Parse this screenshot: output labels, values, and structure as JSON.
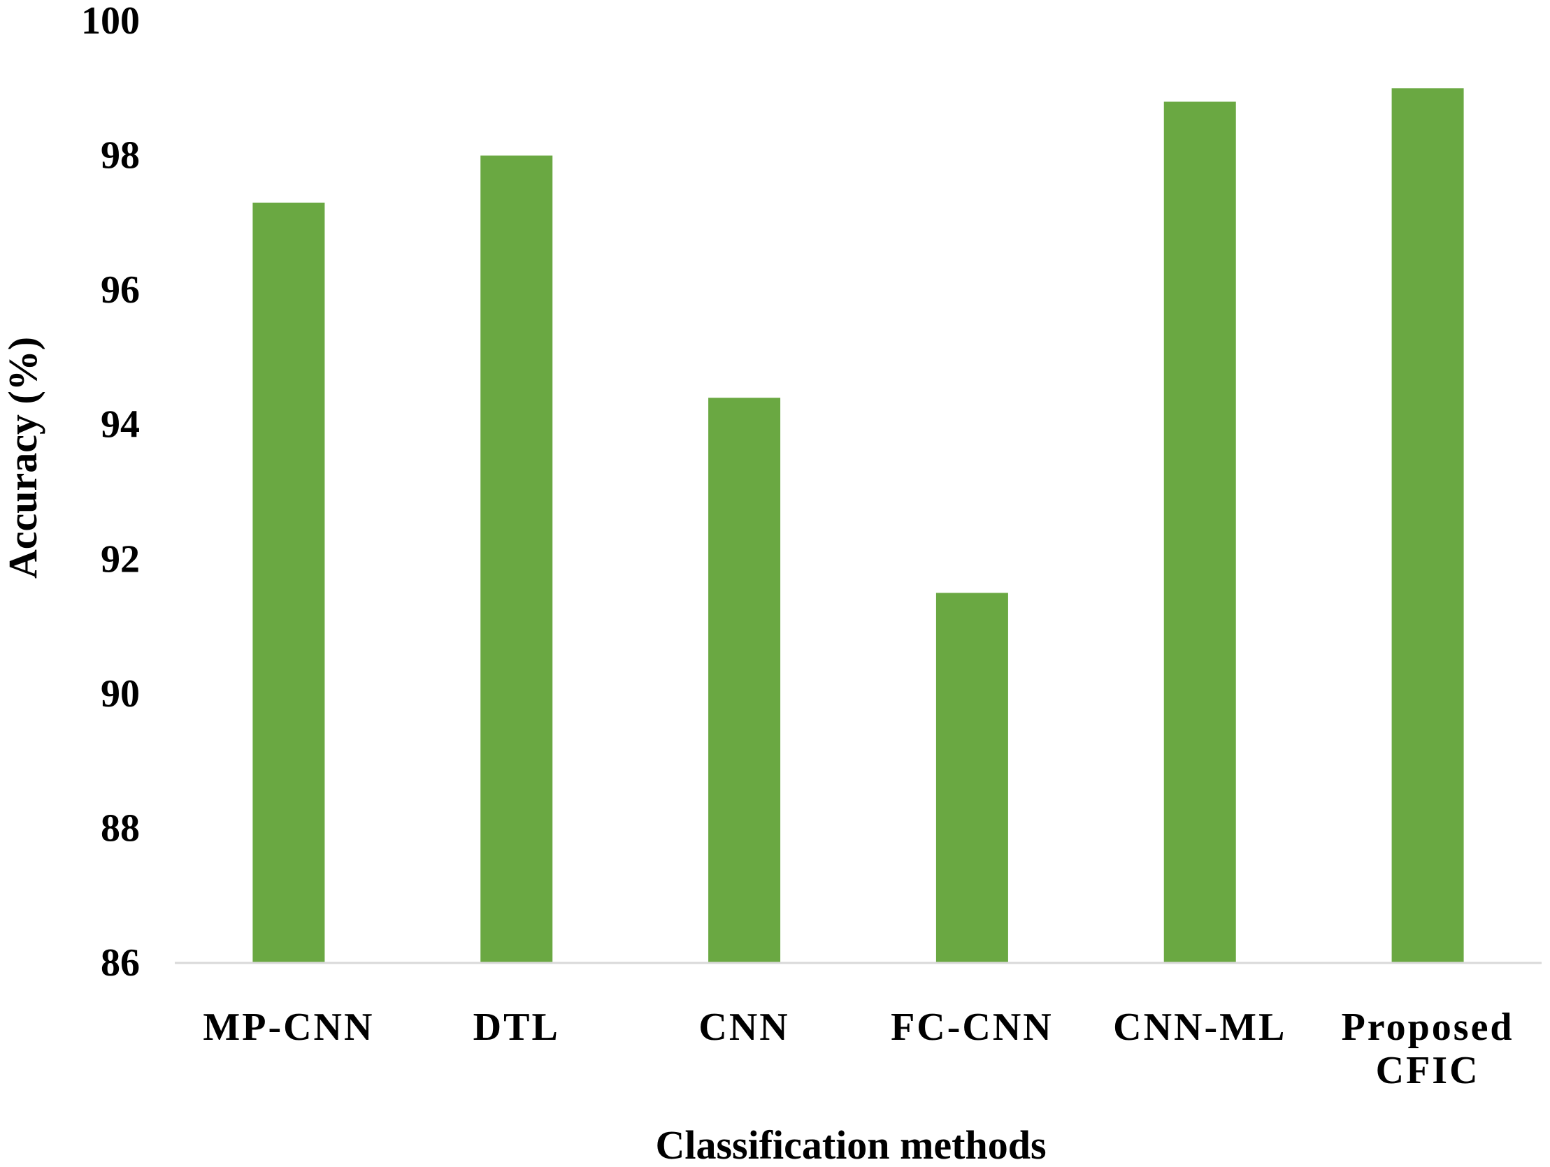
{
  "chart_data": {
    "type": "bar",
    "title": "",
    "xlabel": "Classification methods",
    "ylabel": "Accuracy (%)",
    "categories": [
      [
        "MP-CNN"
      ],
      [
        "DTL"
      ],
      [
        "CNN"
      ],
      [
        "FC-CNN"
      ],
      [
        "CNN-ML"
      ],
      [
        "Proposed",
        "CFIC"
      ]
    ],
    "values": [
      97.3,
      98.0,
      94.4,
      91.5,
      98.8,
      99.0
    ],
    "ylim": [
      86,
      100
    ],
    "yticks": [
      "86",
      "88",
      "90",
      "92",
      "94",
      "96",
      "98",
      "100"
    ],
    "grid": false,
    "legend": "none",
    "bar_color": "#6aa842",
    "axis_color": "#d9d9d9"
  }
}
